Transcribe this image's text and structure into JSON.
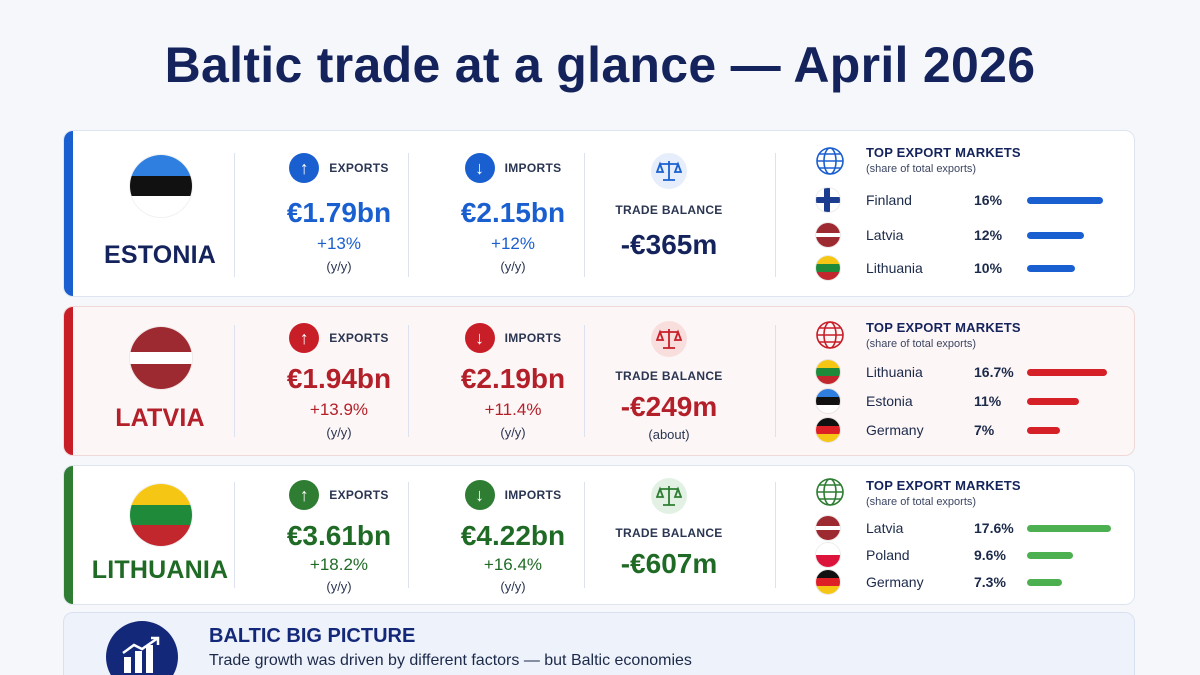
{
  "title": "Baltic trade at a glance — April 2026",
  "countries": [
    {
      "id": "estonia",
      "name": "ESTONIA",
      "accent": "#1a5fd0",
      "flag": [
        "#2f7fe0",
        "#111111",
        "#ffffff"
      ],
      "exports": {
        "label": "EXPORTS",
        "value": "€1.79bn",
        "change": "+13%",
        "period": "(y/y)"
      },
      "imports": {
        "label": "IMPORTS",
        "value": "€2.15bn",
        "change": "+12%",
        "period": "(y/y)"
      },
      "balance": {
        "label": "TRADE BALANCE",
        "value": "-€365m",
        "note": ""
      },
      "markets_title": "TOP EXPORT MARKETS",
      "markets_sub": "(share of total exports)",
      "markets": [
        {
          "name": "Finland",
          "share": "16%",
          "pct": 16,
          "flag": "finland-flag"
        },
        {
          "name": "Latvia",
          "share": "12%",
          "pct": 12,
          "flag": "latvia-flag"
        },
        {
          "name": "Lithuania",
          "share": "10%",
          "pct": 10,
          "flag": "lithuania-flag"
        }
      ]
    },
    {
      "id": "latvia",
      "name": "LATVIA",
      "accent": "#c81e28",
      "flag": [
        "#9e2a31",
        "#ffffff",
        "#9e2a31"
      ],
      "exports": {
        "label": "EXPORTS",
        "value": "€1.94bn",
        "change": "+13.9%",
        "period": "(y/y)"
      },
      "imports": {
        "label": "IMPORTS",
        "value": "€2.19bn",
        "change": "+11.4%",
        "period": "(y/y)"
      },
      "balance": {
        "label": "TRADE BALANCE",
        "value": "-€249m",
        "note": "(about)"
      },
      "markets_title": "TOP EXPORT MARKETS",
      "markets_sub": "(share of total exports)",
      "markets": [
        {
          "name": "Lithuania",
          "share": "16.7%",
          "pct": 16.7,
          "flag": "lithuania-flag"
        },
        {
          "name": "Estonia",
          "share": "11%",
          "pct": 11,
          "flag": "estonia-flag"
        },
        {
          "name": "Germany",
          "share": "7%",
          "pct": 7,
          "flag": "germany-flag"
        }
      ]
    },
    {
      "id": "lithuania",
      "name": "LITHUANIA",
      "accent": "#2e7d32",
      "flag": [
        "#f6c614",
        "#1f8a3a",
        "#c1272d"
      ],
      "exports": {
        "label": "EXPORTS",
        "value": "€3.61bn",
        "change": "+18.2%",
        "period": "(y/y)"
      },
      "imports": {
        "label": "IMPORTS",
        "value": "€4.22bn",
        "change": "+16.4%",
        "period": "(y/y)"
      },
      "balance": {
        "label": "TRADE BALANCE",
        "value": "-€607m",
        "note": ""
      },
      "markets_title": "TOP EXPORT MARKETS",
      "markets_sub": "(share of total exports)",
      "markets": [
        {
          "name": "Latvia",
          "share": "17.6%",
          "pct": 17.6,
          "flag": "latvia-flag"
        },
        {
          "name": "Poland",
          "share": "9.6%",
          "pct": 9.6,
          "flag": "poland-flag"
        },
        {
          "name": "Germany",
          "share": "7.3%",
          "pct": 7.3,
          "flag": "germany-flag"
        }
      ]
    }
  ],
  "big_picture": {
    "title": "BALTIC BIG PICTURE",
    "text": "Trade growth was driven by different factors — but Baltic economies"
  },
  "icons": {
    "exports": "arrow-up-icon",
    "imports": "arrow-down-icon",
    "balance": "scale-icon",
    "markets": "globe-icon",
    "big_picture": "growth-chart-icon"
  }
}
